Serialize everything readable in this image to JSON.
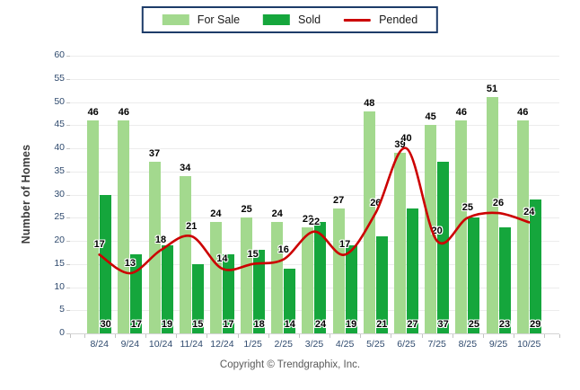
{
  "legend": {
    "for_sale": "For Sale",
    "sold": "Sold",
    "pended": "Pended"
  },
  "footer": {
    "text": "Copyright © Trendgraphix, Inc."
  },
  "colors": {
    "for_sale": "#a3d98e",
    "sold": "#15a63c",
    "pended": "#cc0000",
    "grid": "#ececec",
    "baseline": "#d4d4d4",
    "tick": "#c4c4c4",
    "axis_text": "#2f4a6e",
    "ylabel_text": "#3a3a3a",
    "legend_border": "#1e3c69",
    "legend_text": "#1a1a1a",
    "value_text": "#000000",
    "footer_text": "#595959",
    "background": "#ffffff"
  },
  "chart_data": {
    "type": "bar",
    "title": "",
    "categories": [
      "8/24",
      "9/24",
      "10/24",
      "11/24",
      "12/24",
      "1/25",
      "2/25",
      "3/25",
      "4/25",
      "5/25",
      "6/25",
      "7/25",
      "8/25",
      "9/25",
      "10/25"
    ],
    "series": [
      {
        "name": "For Sale",
        "type": "bar",
        "color": "#a3d98e",
        "values": [
          46,
          46,
          37,
          34,
          24,
          25,
          24,
          23,
          27,
          48,
          39,
          45,
          46,
          51,
          46
        ]
      },
      {
        "name": "Sold",
        "type": "bar",
        "color": "#15a63c",
        "values": [
          30,
          17,
          19,
          15,
          17,
          18,
          14,
          24,
          19,
          21,
          27,
          37,
          25,
          23,
          29
        ]
      },
      {
        "name": "Pended",
        "type": "line",
        "color": "#cc0000",
        "values": [
          17,
          13,
          18,
          21,
          14,
          15,
          16,
          22,
          17,
          26,
          40,
          20,
          25,
          26,
          24
        ]
      }
    ],
    "xlabel": "",
    "ylabel": "Number of Homes",
    "ylim": [
      0,
      60
    ],
    "ytick_step": 5,
    "grid": true,
    "legend_position": "top",
    "value_labels": true
  }
}
